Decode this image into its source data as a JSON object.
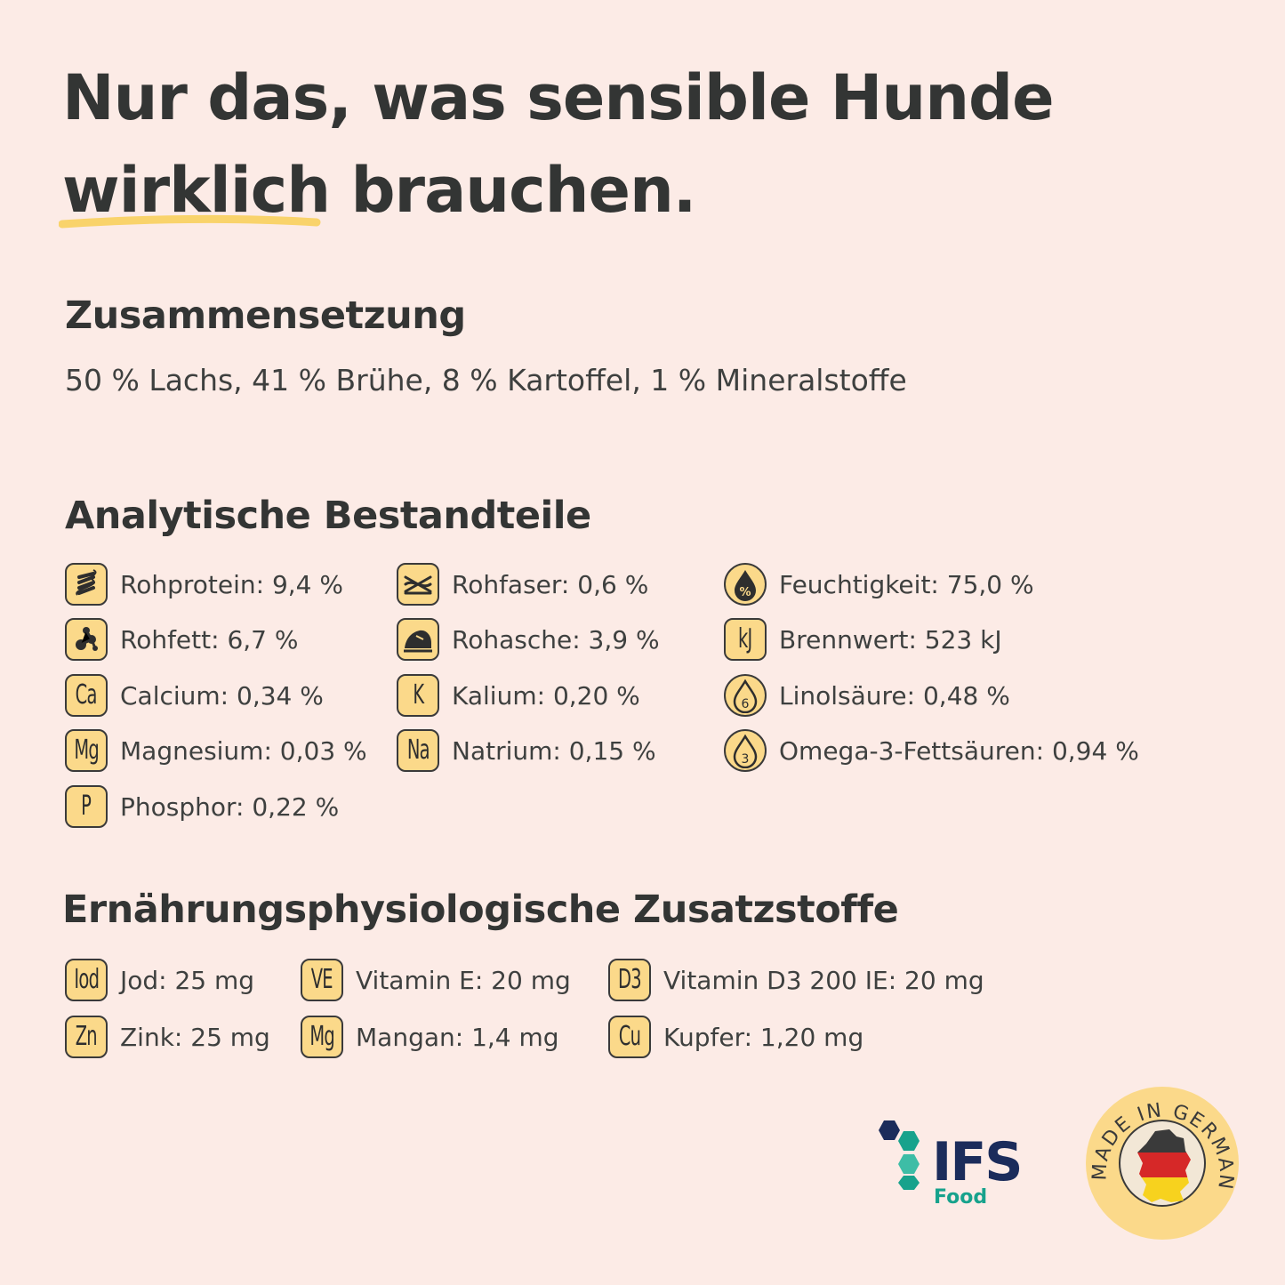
{
  "headline": {
    "line1": "Nur das, was sensible Hunde",
    "underlined": "wirklich",
    "line2_rest": "brauchen.",
    "underline_color": "#f9d36b"
  },
  "composition": {
    "title": "Zusammensetzung",
    "text": "50 % Lachs, 41 % Brühe, 8 % Kartoffel, 1 % Mineralstoffe"
  },
  "analytic": {
    "title": "Analytische Bestandteile",
    "items": [
      {
        "icon": "protein-spiral-icon",
        "label": "Rohprotein: 9,4 %"
      },
      {
        "icon": "fiber-icon",
        "label": "Rohfaser: 0,6 %"
      },
      {
        "icon": "moisture-drop-icon",
        "label": "Feuchtigkeit: 75,0 %"
      },
      {
        "icon": "fat-icon",
        "label": "Rohfett: 6,7 %"
      },
      {
        "icon": "ash-icon",
        "label": "Rohasche: 3,9 %"
      },
      {
        "icon": "kj-icon",
        "symbol": "kJ",
        "label": "Brennwert: 523 kJ"
      },
      {
        "icon": "calcium-icon",
        "symbol": "Ca",
        "label": "Calcium: 0,34 %"
      },
      {
        "icon": "potassium-icon",
        "symbol": "K",
        "label": "Kalium: 0,20 %"
      },
      {
        "icon": "omega6-drop-icon",
        "label": "Linolsäure: 0,48 %"
      },
      {
        "icon": "magnesium-icon",
        "symbol": "Mg",
        "label": "Magnesium: 0,03 %"
      },
      {
        "icon": "sodium-icon",
        "symbol": "Na",
        "label": "Natrium: 0,15 %"
      },
      {
        "icon": "omega3-drop-icon",
        "label": "Omega-3-Fettsäuren: 0,94 %"
      },
      {
        "icon": "phosphorus-icon",
        "symbol": "P",
        "label": "Phosphor: 0,22 %"
      }
    ]
  },
  "additives": {
    "title": "Ernährungsphysiologische Zusatzstoffe",
    "items": [
      {
        "icon": "iodine-icon",
        "symbol": "Iod",
        "label": "Jod: 25 mg"
      },
      {
        "icon": "vitamin-e-icon",
        "symbol": "VE",
        "label": "Vitamin E: 20 mg"
      },
      {
        "icon": "vitamin-d3-icon",
        "symbol": "D3",
        "label": "Vitamin D3 200 IE: 20 mg"
      },
      {
        "icon": "zinc-icon",
        "symbol": "Zn",
        "label": "Zink: 25 mg"
      },
      {
        "icon": "manganese-icon",
        "symbol": "Mg",
        "label": "Mangan: 1,4 mg"
      },
      {
        "icon": "copper-icon",
        "symbol": "Cu",
        "label": "Kupfer: 1,20 mg"
      }
    ]
  },
  "logos": {
    "ifs_name": "IFS",
    "ifs_sub": "Food",
    "made_in": "MADE IN GERMANY",
    "colors": {
      "badge": "#fbd98a",
      "ifs_navy": "#1b2c5b",
      "ifs_teal": "#17a28c",
      "seal": "#fbd98a"
    }
  },
  "drop_numbers": {
    "omega6": "6",
    "omega3": "3",
    "percent": "%"
  }
}
